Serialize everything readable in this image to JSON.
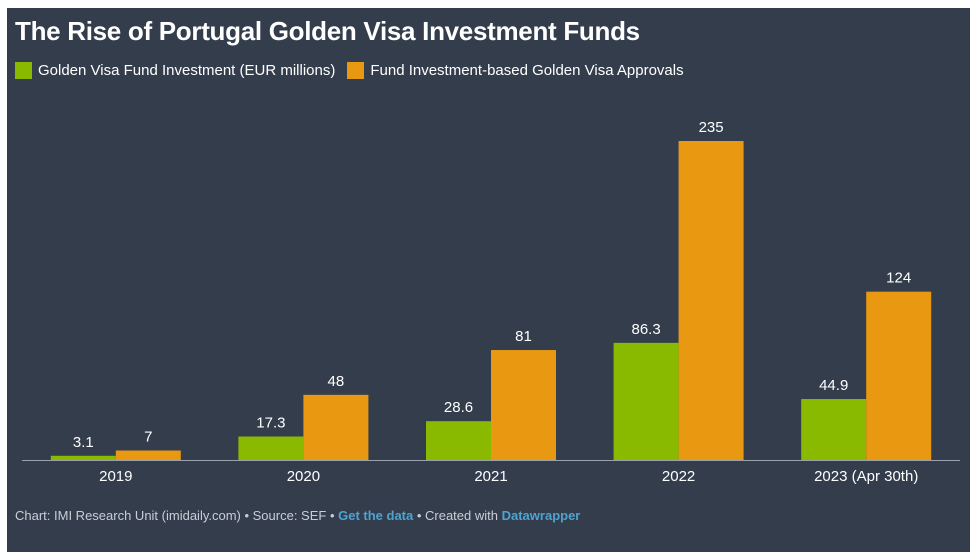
{
  "chart_data": {
    "type": "bar",
    "title": "The Rise of Portugal Golden Visa Investment Funds",
    "categories": [
      "2019",
      "2020",
      "2021",
      "2022",
      "2023 (Apr 30th)"
    ],
    "series": [
      {
        "name": "Golden Visa Fund Investment (EUR millions)",
        "color": "#8aba00",
        "values": [
          3.1,
          17.3,
          28.6,
          86.3,
          44.9
        ]
      },
      {
        "name": "Fund Investment-based Golden Visa Approvals",
        "color": "#e89811",
        "values": [
          7,
          48,
          81,
          235,
          124
        ]
      }
    ],
    "ylim": [
      0,
      235
    ],
    "grid": false,
    "legend_position": "top-left",
    "data_labels": true
  },
  "footer": {
    "prefix": "Chart: IMI Research Unit (imidaily.com) • Source: SEF • ",
    "get_data": "Get the data",
    "middle": " • Created with ",
    "datawrapper": "Datawrapper"
  },
  "colors": {
    "background": "#333d4c",
    "text": "#ffffff",
    "link": "#4fa3d1"
  }
}
